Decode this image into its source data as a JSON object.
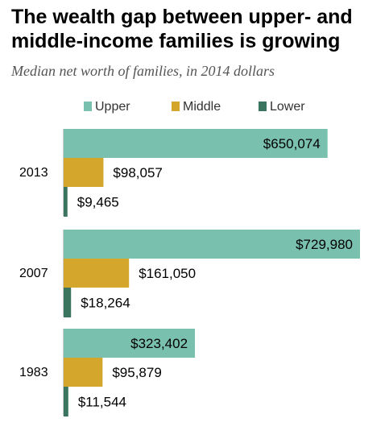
{
  "header": {
    "title": "The wealth gap between upper- and middle-income families is growing",
    "subtitle": "Median net worth of families, in 2014 dollars"
  },
  "colors": {
    "upper": "#7ac0ae",
    "middle": "#d4a72c",
    "lower": "#3b7560",
    "axis": "#999999"
  },
  "chart_data": {
    "type": "bar",
    "orientation": "horizontal",
    "title": "The wealth gap between upper- and middle-income families is growing",
    "subtitle": "Median net worth of families, in 2014 dollars",
    "legend_position": "top",
    "categories": [
      "2013",
      "2007",
      "1983"
    ],
    "series": [
      {
        "name": "Upper",
        "color": "#7ac0ae",
        "values": [
          650074,
          729980,
          323402
        ],
        "labels": [
          "$650,074",
          "$729,980",
          "$323,402"
        ]
      },
      {
        "name": "Middle",
        "color": "#d4a72c",
        "values": [
          98057,
          161050,
          95879
        ],
        "labels": [
          "$98,057",
          "$161,050",
          "$95,879"
        ]
      },
      {
        "name": "Lower",
        "color": "#3b7560",
        "values": [
          9465,
          18264,
          11544
        ],
        "labels": [
          "$9,465",
          "$18,264",
          "$11,544"
        ]
      }
    ],
    "xlim": [
      0,
      729980
    ]
  }
}
